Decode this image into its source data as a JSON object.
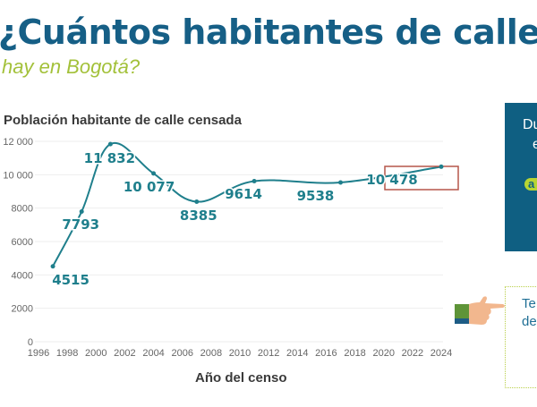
{
  "header": {
    "title": "¿Cuántos habitantes de calle",
    "subtitle": "hay en Bogotá?"
  },
  "chart_data": {
    "type": "line",
    "title": "Población habitante de calle censada",
    "xlabel": "Año del censo",
    "ylabel": "",
    "x": [
      1997,
      1999,
      2001,
      2004,
      2007,
      2011,
      2017,
      2024
    ],
    "values": [
      4515,
      7793,
      11832,
      10077,
      8385,
      9614,
      9538,
      10478
    ],
    "data_labels": [
      "4515",
      "7793",
      "11 832",
      "10 077",
      "8385",
      "9614",
      "9538",
      "10 478"
    ],
    "xlim": [
      1996,
      2024
    ],
    "ylim": [
      0,
      12000
    ],
    "xticks": [
      "1996",
      "1998",
      "2000",
      "2002",
      "2004",
      "2006",
      "2008",
      "2010",
      "2012",
      "2014",
      "2016",
      "2018",
      "2020",
      "2022",
      "2024"
    ],
    "yticks": [
      "0",
      "2000",
      "4000",
      "6000",
      "8000",
      "10 000",
      "12 000"
    ],
    "grid": true,
    "highlighted_point": 2024,
    "colors": {
      "line": "#1f7f8c",
      "label": "#1f7f8c",
      "highlight_box": "#b5564a"
    }
  },
  "side_panel": {
    "box_line1": "Du",
    "box_line2": "e",
    "box_pill": "a",
    "note_line1": "Te",
    "note_line2": "de",
    "pointer_icon": "pointing-hand-icon",
    "colors": {
      "box": "#0f5f82",
      "pill": "#b7d533",
      "note_border": "#b9cf4a"
    }
  }
}
